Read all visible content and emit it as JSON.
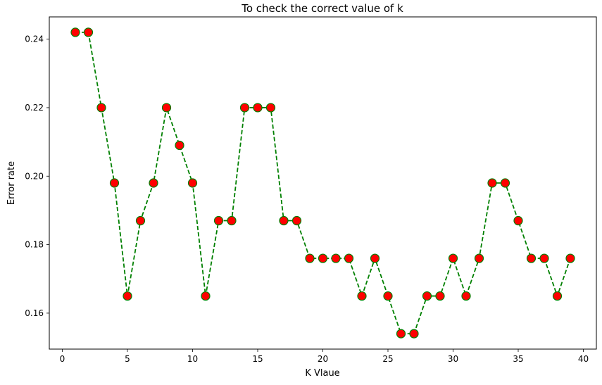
{
  "chart_data": {
    "type": "line",
    "title": "To check the correct value of k",
    "xlabel": "K Vlaue",
    "ylabel": "Error rate",
    "xlim": [
      -1,
      41
    ],
    "ylim": [
      0.1495,
      0.2465
    ],
    "xticks": [
      0,
      5,
      10,
      15,
      20,
      25,
      30,
      35,
      40
    ],
    "yticks": [
      0.16,
      0.18,
      0.2,
      0.22,
      0.24
    ],
    "ytick_labels": [
      "0.16",
      "0.18",
      "0.20",
      "0.22",
      "0.24"
    ],
    "grid": false,
    "line_color": "#008000",
    "line_style": "dashed",
    "marker": "circle",
    "marker_face_color": "#ff0000",
    "marker_edge_color": "#008000",
    "x": [
      1,
      2,
      3,
      4,
      5,
      6,
      7,
      8,
      9,
      10,
      11,
      12,
      13,
      14,
      15,
      16,
      17,
      18,
      19,
      20,
      21,
      22,
      23,
      24,
      25,
      26,
      27,
      28,
      29,
      30,
      31,
      32,
      33,
      34,
      35,
      36,
      37,
      38,
      39
    ],
    "y": [
      0.242,
      0.242,
      0.22,
      0.198,
      0.165,
      0.187,
      0.198,
      0.22,
      0.209,
      0.198,
      0.165,
      0.187,
      0.187,
      0.22,
      0.22,
      0.22,
      0.187,
      0.187,
      0.176,
      0.176,
      0.176,
      0.176,
      0.165,
      0.176,
      0.165,
      0.154,
      0.154,
      0.165,
      0.165,
      0.176,
      0.165,
      0.176,
      0.198,
      0.198,
      0.187,
      0.176,
      0.176,
      0.165,
      0.176
    ]
  }
}
